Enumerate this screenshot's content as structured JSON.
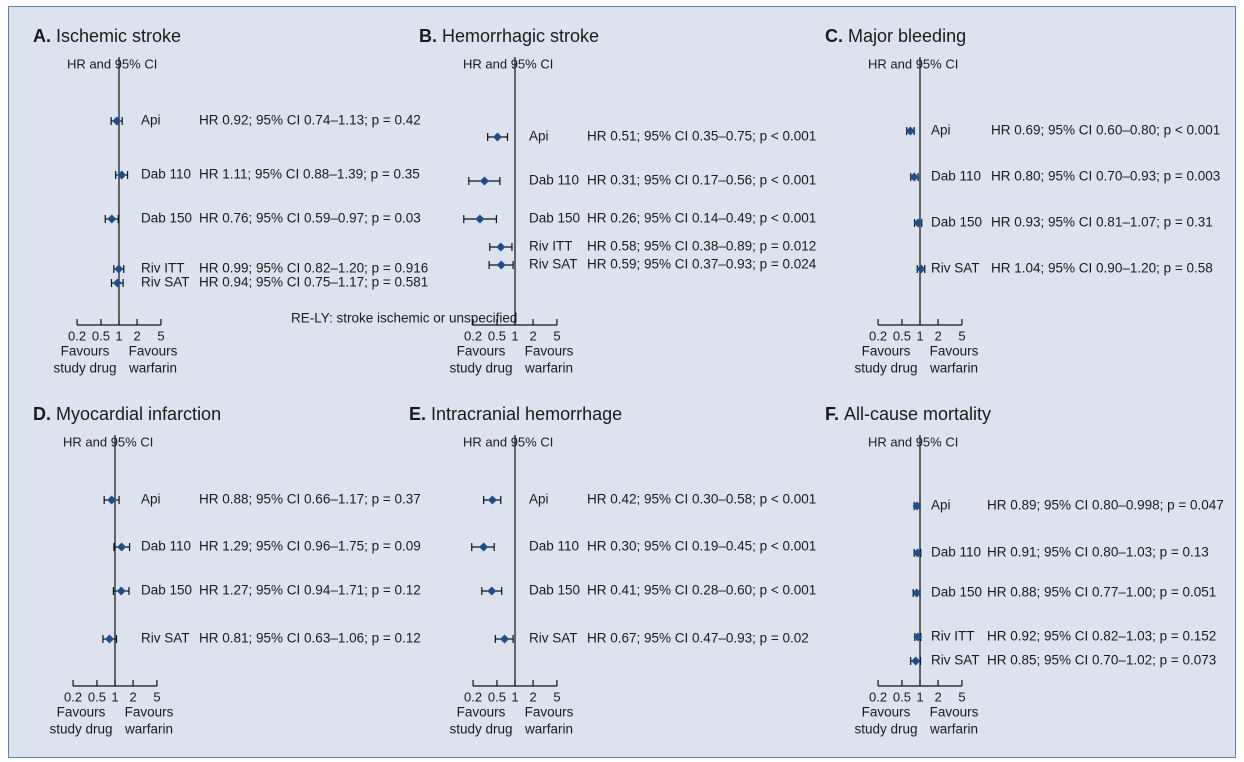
{
  "colors": {
    "marker": "#1f4e8c",
    "line": "#111111",
    "background": "#dde3ee",
    "border": "#5a83b4"
  },
  "chart_data": [
    {
      "type": "forest",
      "panel_label": "A.",
      "title": "Ischemic stroke",
      "subtitle": "HR and 95% CI",
      "scale": "log",
      "xlim": [
        0.2,
        5
      ],
      "ticks": [
        "0.2",
        "0.5",
        "1",
        "2",
        "5"
      ],
      "favours_left": [
        "Favours",
        "study drug"
      ],
      "favours_right": [
        "Favours",
        "warfarin"
      ],
      "note": "RE-LY: stroke ischemic or unspecified",
      "rows": [
        {
          "label": "Api",
          "hr": 0.92,
          "lo": 0.74,
          "hi": 1.13,
          "text": "HR 0.92; 95% CI 0.74–1.13; p = 0.42"
        },
        {
          "label": "Dab 110",
          "hr": 1.11,
          "lo": 0.88,
          "hi": 1.39,
          "text": "HR 1.11; 95% CI 0.88–1.39; p = 0.35"
        },
        {
          "label": "Dab 150",
          "hr": 0.76,
          "lo": 0.59,
          "hi": 0.97,
          "text": "HR 0.76; 95% CI 0.59–0.97; p = 0.03"
        },
        {
          "label": "Riv ITT",
          "hr": 0.99,
          "lo": 0.82,
          "hi": 1.2,
          "text": "HR 0.99; 95% CI 0.82–1.20; p = 0.916"
        },
        {
          "label": "Riv SAT",
          "hr": 0.94,
          "lo": 0.75,
          "hi": 1.17,
          "text": "HR 0.94; 95% CI 0.75–1.17; p = 0.581"
        }
      ]
    },
    {
      "type": "forest",
      "panel_label": "B.",
      "title": "Hemorrhagic stroke",
      "subtitle": "HR and 95% CI",
      "scale": "log",
      "xlim": [
        0.2,
        5
      ],
      "ticks": [
        "0.2",
        "0.5",
        "1",
        "2",
        "5"
      ],
      "favours_left": [
        "Favours",
        "study drug"
      ],
      "favours_right": [
        "Favours",
        "warfarin"
      ],
      "note": "",
      "rows": [
        {
          "label": "Api",
          "hr": 0.51,
          "lo": 0.35,
          "hi": 0.75,
          "text": "HR 0.51; 95% CI 0.35–0.75; p < 0.001"
        },
        {
          "label": "Dab 110",
          "hr": 0.31,
          "lo": 0.17,
          "hi": 0.56,
          "text": "HR 0.31; 95% CI 0.17–0.56; p < 0.001"
        },
        {
          "label": "Dab 150",
          "hr": 0.26,
          "lo": 0.14,
          "hi": 0.49,
          "text": "HR 0.26; 95% CI 0.14–0.49; p < 0.001"
        },
        {
          "label": "Riv ITT",
          "hr": 0.58,
          "lo": 0.38,
          "hi": 0.89,
          "text": "HR 0.58; 95% CI 0.38–0.89; p = 0.012"
        },
        {
          "label": "Riv SAT",
          "hr": 0.59,
          "lo": 0.37,
          "hi": 0.93,
          "text": "HR 0.59; 95% CI 0.37–0.93; p = 0.024"
        }
      ]
    },
    {
      "type": "forest",
      "panel_label": "C.",
      "title": "Major bleeding",
      "subtitle": "HR and 95% CI",
      "scale": "log",
      "xlim": [
        0.2,
        5
      ],
      "ticks": [
        "0.2",
        "0.5",
        "1",
        "2",
        "5"
      ],
      "favours_left": [
        "Favours",
        "study drug"
      ],
      "favours_right": [
        "Favours",
        "warfarin"
      ],
      "note": "",
      "rows": [
        {
          "label": "Api",
          "hr": 0.69,
          "lo": 0.6,
          "hi": 0.8,
          "text": "HR 0.69; 95% CI 0.60–0.80; p < 0.001"
        },
        {
          "label": "Dab 110",
          "hr": 0.8,
          "lo": 0.7,
          "hi": 0.93,
          "text": "HR 0.80; 95% CI 0.70–0.93; p = 0.003"
        },
        {
          "label": "Dab 150",
          "hr": 0.93,
          "lo": 0.81,
          "hi": 1.07,
          "text": "HR 0.93; 95% CI 0.81–1.07; p = 0.31"
        },
        {
          "label": "Riv SAT",
          "hr": 1.04,
          "lo": 0.9,
          "hi": 1.2,
          "text": "HR 1.04; 95% CI 0.90–1.20; p = 0.58"
        }
      ]
    },
    {
      "type": "forest",
      "panel_label": "D.",
      "title": "Myocardial infarction",
      "subtitle": "HR and 95% CI",
      "scale": "log",
      "xlim": [
        0.2,
        5
      ],
      "ticks": [
        "0.2",
        "0.5",
        "1",
        "2",
        "5"
      ],
      "favours_left": [
        "Favours",
        "study drug"
      ],
      "favours_right": [
        "Favours",
        "warfarin"
      ],
      "note": "",
      "rows": [
        {
          "label": "Api",
          "hr": 0.88,
          "lo": 0.66,
          "hi": 1.17,
          "text": "HR 0.88; 95% CI 0.66–1.17; p = 0.37"
        },
        {
          "label": "Dab 110",
          "hr": 1.29,
          "lo": 0.96,
          "hi": 1.75,
          "text": "HR 1.29; 95% CI 0.96–1.75; p = 0.09"
        },
        {
          "label": "Dab 150",
          "hr": 1.27,
          "lo": 0.94,
          "hi": 1.71,
          "text": "HR 1.27; 95% CI 0.94–1.71; p = 0.12"
        },
        {
          "label": "Riv SAT",
          "hr": 0.81,
          "lo": 0.63,
          "hi": 1.06,
          "text": "HR 0.81; 95% CI 0.63–1.06; p = 0.12"
        }
      ]
    },
    {
      "type": "forest",
      "panel_label": "E.",
      "title": "Intracranial hemorrhage",
      "subtitle": "HR and 95% CI",
      "scale": "log",
      "xlim": [
        0.2,
        5
      ],
      "ticks": [
        "0.2",
        "0.5",
        "1",
        "2",
        "5"
      ],
      "favours_left": [
        "Favours",
        "study drug"
      ],
      "favours_right": [
        "Favours",
        "warfarin"
      ],
      "note": "",
      "rows": [
        {
          "label": "Api",
          "hr": 0.42,
          "lo": 0.3,
          "hi": 0.58,
          "text": "HR 0.42; 95% CI 0.30–0.58; p < 0.001"
        },
        {
          "label": "Dab 110",
          "hr": 0.3,
          "lo": 0.19,
          "hi": 0.45,
          "text": "HR 0.30; 95% CI 0.19–0.45; p < 0.001"
        },
        {
          "label": "Dab 150",
          "hr": 0.41,
          "lo": 0.28,
          "hi": 0.6,
          "text": "HR 0.41; 95% CI 0.28–0.60; p < 0.001"
        },
        {
          "label": "Riv SAT",
          "hr": 0.67,
          "lo": 0.47,
          "hi": 0.93,
          "text": "HR 0.67; 95% CI 0.47–0.93; p = 0.02"
        }
      ]
    },
    {
      "type": "forest",
      "panel_label": "F.",
      "title": "All-cause mortality",
      "subtitle": "HR and 95% CI",
      "scale": "log",
      "xlim": [
        0.2,
        5
      ],
      "ticks": [
        "0.2",
        "0.5",
        "1",
        "2",
        "5"
      ],
      "favours_left": [
        "Favours",
        "study drug"
      ],
      "favours_right": [
        "Favours",
        "warfarin"
      ],
      "note": "",
      "rows": [
        {
          "label": "Api",
          "hr": 0.89,
          "lo": 0.8,
          "hi": 0.998,
          "text": "HR 0.89; 95% CI 0.80–0.998; p = 0.047"
        },
        {
          "label": "Dab 110",
          "hr": 0.91,
          "lo": 0.8,
          "hi": 1.03,
          "text": "HR 0.91; 95% CI 0.80–1.03; p = 0.13"
        },
        {
          "label": "Dab 150",
          "hr": 0.88,
          "lo": 0.77,
          "hi": 1.0,
          "text": "HR 0.88; 95% CI 0.77–1.00; p = 0.051"
        },
        {
          "label": "Riv ITT",
          "hr": 0.92,
          "lo": 0.82,
          "hi": 1.03,
          "text": "HR 0.92; 95% CI 0.82–1.03; p = 0.152"
        },
        {
          "label": "Riv SAT",
          "hr": 0.85,
          "lo": 0.7,
          "hi": 1.02,
          "text": "HR 0.85; 95% CI 0.70–1.02; p = 0.073"
        }
      ]
    }
  ]
}
